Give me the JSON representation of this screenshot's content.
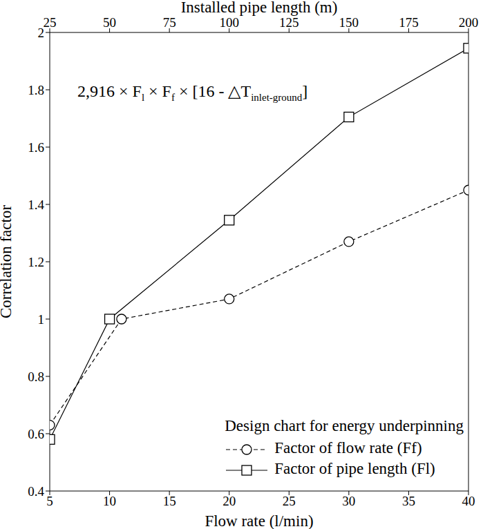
{
  "chart_data": {
    "type": "line",
    "xlabel": "Flow rate (l/min)",
    "x2label": "Installed pipe length (m)",
    "ylabel": "Correlation factor",
    "xlim": [
      5,
      40
    ],
    "xticks": [
      5,
      10,
      15,
      20,
      25,
      30,
      35,
      40
    ],
    "x2lim": [
      25,
      200
    ],
    "x2ticks": [
      25,
      50,
      75,
      100,
      125,
      150,
      175,
      200
    ],
    "ylim": [
      0.4,
      2
    ],
    "yticks": [
      0.4,
      0.6,
      0.8,
      1,
      1.2,
      1.4,
      1.6,
      1.8,
      2
    ],
    "grid": false,
    "annotation": [
      {
        "text": "2,916 × F",
        "sub": "l"
      },
      {
        "text": " × F",
        "sub": "f"
      },
      {
        "text": " × [16 - △T",
        "sub": "inlet-ground"
      },
      {
        "text": "]"
      }
    ],
    "legend_title": "Design chart for energy underpinning",
    "legend": "lower right",
    "series": [
      {
        "name": "Factor of flow rate (Ff)",
        "color": "#000000",
        "line_style": "dashed",
        "marker": "circle",
        "x": [
          5,
          11,
          20,
          30,
          40
        ],
        "values": [
          0.63,
          1.0,
          1.07,
          1.27,
          1.45
        ]
      },
      {
        "name": "Factor of pipe length (Fl)",
        "color": "#000000",
        "line_style": "solid",
        "marker": "square",
        "axis": "x2",
        "x": [
          25,
          50,
          100,
          150,
          200
        ],
        "values": [
          0.58,
          1.0,
          1.345,
          1.705,
          1.945
        ]
      }
    ]
  }
}
